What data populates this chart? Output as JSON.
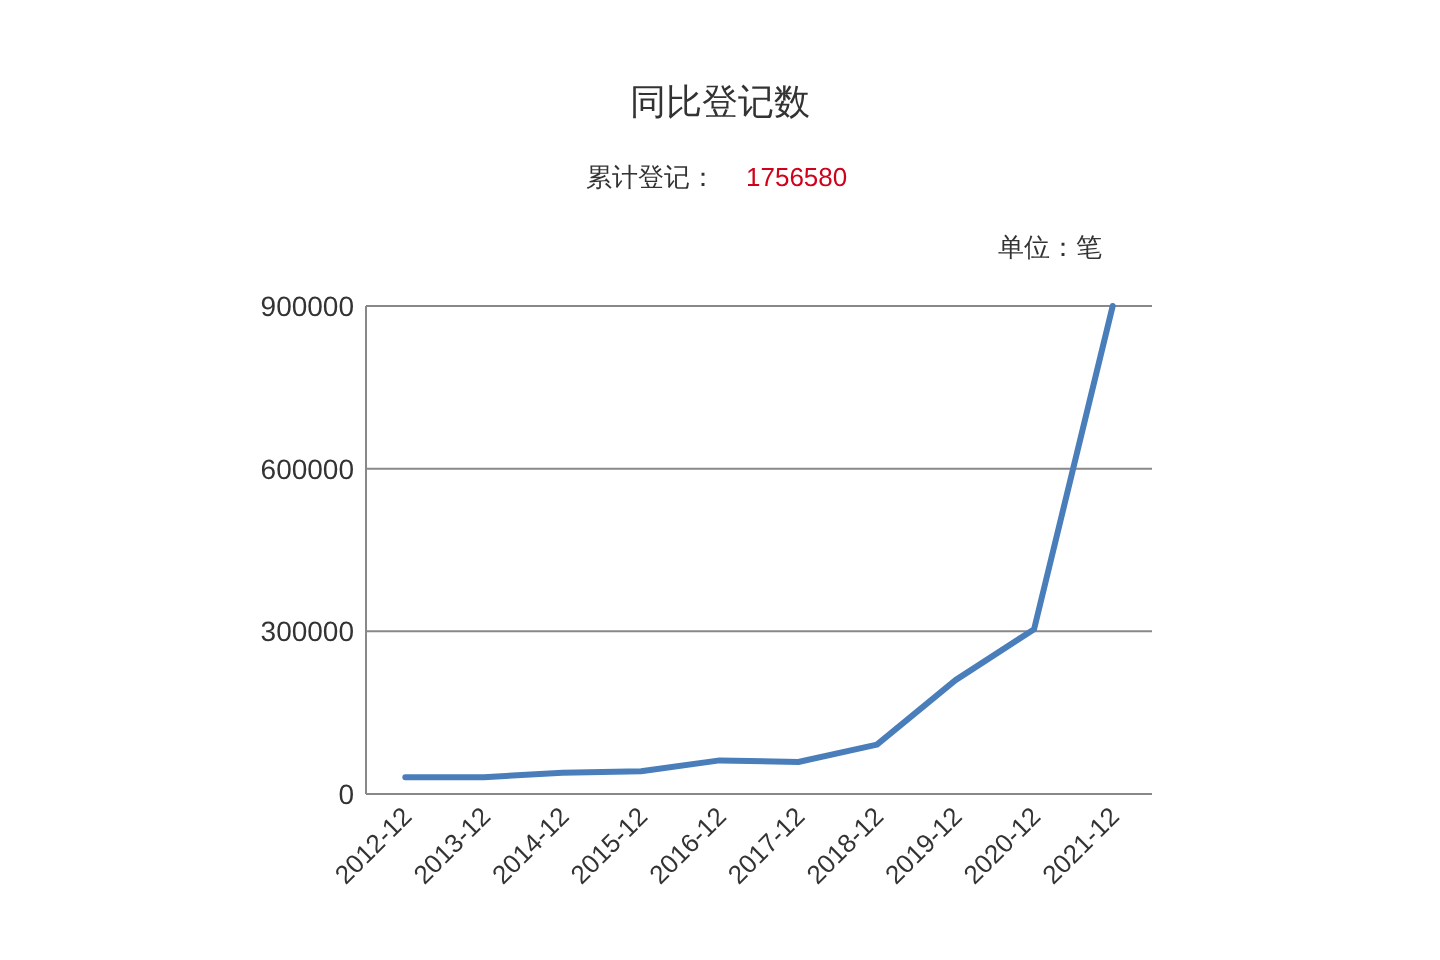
{
  "chart_data": {
    "type": "line",
    "title": "同比登记数",
    "subtitle": "累计登记：",
    "annotations": [
      "1756580",
      "单位：笔"
    ],
    "categories": [
      "2012-12",
      "2013-12",
      "2014-12",
      "2015-12",
      "2016-12",
      "2017-12",
      "2018-12",
      "2019-12",
      "2020-12",
      "2021-12"
    ],
    "series": [
      {
        "color": "#4a7ebb",
        "values": [
          31000,
          31000,
          39000,
          42000,
          62000,
          59000,
          91000,
          210000,
          304000,
          900000
        ]
      }
    ],
    "ylim": [
      0,
      900000
    ],
    "yticks": [
      0,
      300000,
      600000,
      900000
    ],
    "grid": "y",
    "marker": "none",
    "line_style": "solid"
  }
}
